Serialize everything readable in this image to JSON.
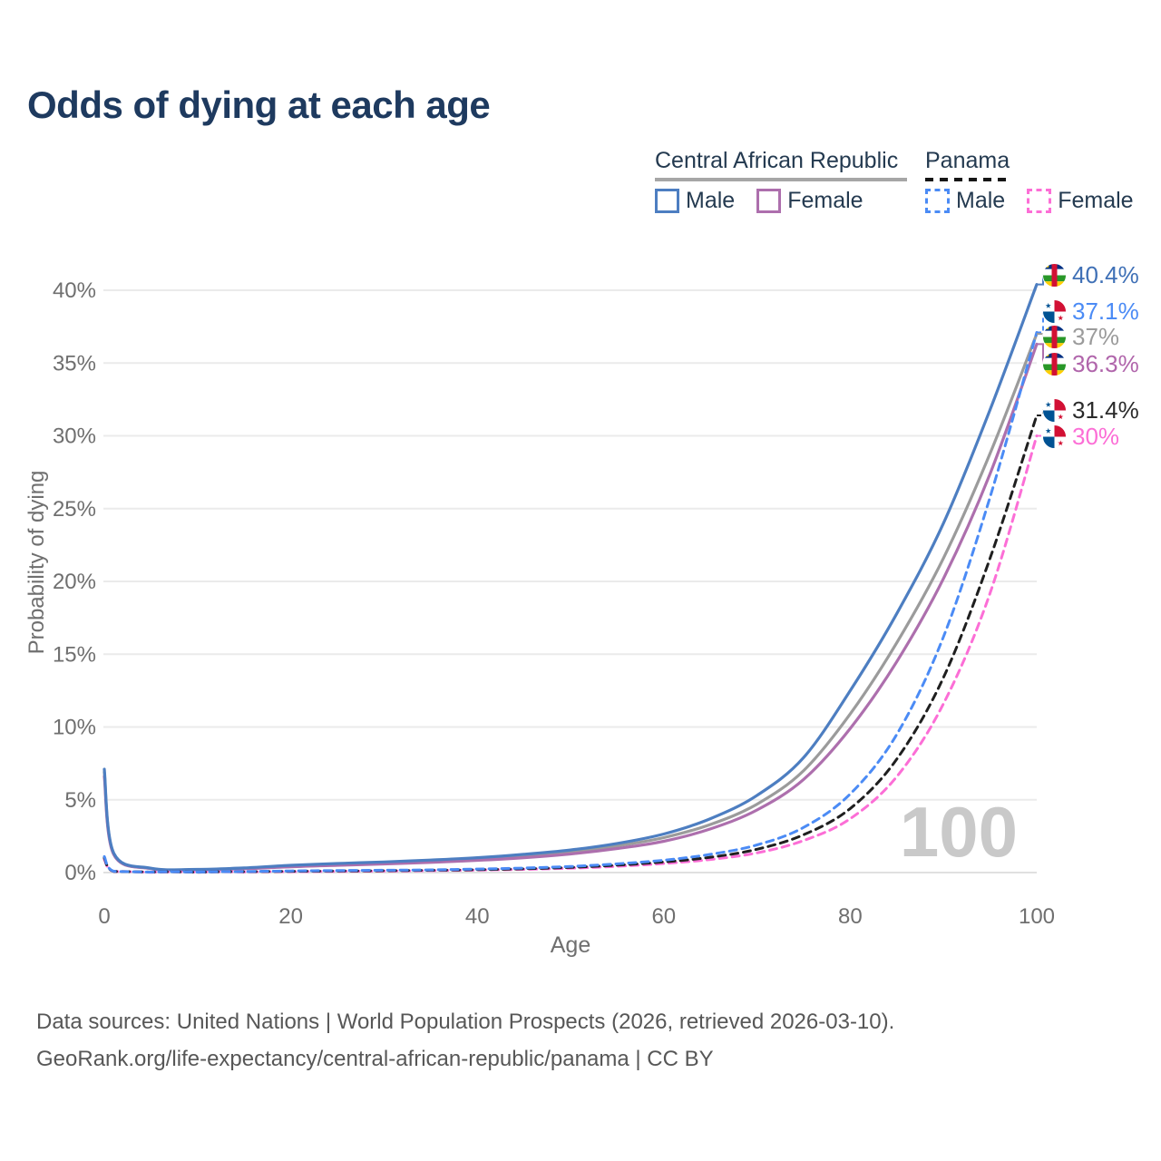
{
  "page": {
    "title": "Odds of dying at each age",
    "background": "#ffffff",
    "title_color": "#1e3a5f"
  },
  "legend": {
    "groups": [
      {
        "label": "Central African Republic",
        "line_style": "solid",
        "underline_color": "#a6a6a6",
        "items": [
          {
            "label": "Male",
            "color": "#4d7ec1"
          },
          {
            "label": "Female",
            "color": "#ad6fad"
          }
        ]
      },
      {
        "label": "Panama",
        "line_style": "dashed",
        "underline_color": "#161616",
        "items": [
          {
            "label": "Male",
            "color": "#4b8bf5"
          },
          {
            "label": "Female",
            "color": "#fc6ed6"
          }
        ]
      }
    ]
  },
  "chart_data": {
    "type": "line",
    "title": "Odds of dying at each age",
    "xlabel": "Age",
    "ylabel": "Probability of dying",
    "x_ticks": [
      0,
      20,
      40,
      60,
      80,
      100
    ],
    "y_ticks_pct": [
      0,
      5,
      10,
      15,
      20,
      25,
      30,
      35,
      40
    ],
    "xlim": [
      0,
      100
    ],
    "ylim_pct": [
      0,
      42
    ],
    "grid": "horizontal",
    "watermark": "100",
    "ages": [
      0,
      1,
      5,
      10,
      15,
      20,
      25,
      30,
      35,
      40,
      45,
      50,
      55,
      60,
      65,
      70,
      75,
      80,
      85,
      90,
      95,
      100
    ],
    "series": [
      {
        "name": "Central African Republic — Male",
        "country": "central-african-republic",
        "sex": "male",
        "line": "solid",
        "color": "#4d7ec1",
        "label_color": "#3f70b6",
        "end_label": "40.4%",
        "values_pct": [
          7.1,
          1.35,
          0.3,
          0.22,
          0.32,
          0.5,
          0.62,
          0.73,
          0.86,
          1.02,
          1.25,
          1.55,
          2.0,
          2.65,
          3.7,
          5.3,
          7.9,
          12.5,
          17.8,
          24.0,
          31.8,
          40.4
        ]
      },
      {
        "name": "Panama — Male",
        "country": "panama",
        "sex": "male",
        "line": "dashed",
        "color": "#4b8bf5",
        "label_color": "#4b8bf5",
        "end_label": "37.1%",
        "values_pct": [
          1.1,
          0.09,
          0.03,
          0.03,
          0.07,
          0.11,
          0.14,
          0.16,
          0.19,
          0.24,
          0.31,
          0.42,
          0.6,
          0.85,
          1.25,
          1.9,
          3.1,
          5.4,
          9.5,
          16.2,
          25.8,
          37.1
        ]
      },
      {
        "name": "Central African Republic — Both sexes",
        "country": "central-african-republic",
        "sex": "both",
        "line": "solid",
        "color": "#9b9b9b",
        "label_color": "#9b9b9b",
        "end_label": "37%",
        "values_pct": [
          6.9,
          1.3,
          0.28,
          0.2,
          0.29,
          0.45,
          0.56,
          0.66,
          0.78,
          0.93,
          1.13,
          1.42,
          1.83,
          2.4,
          3.3,
          4.7,
          7.0,
          10.9,
          15.8,
          21.6,
          28.8,
          37.0
        ]
      },
      {
        "name": "Central African Republic — Female",
        "country": "central-african-republic",
        "sex": "female",
        "line": "solid",
        "color": "#ad6fad",
        "label_color": "#b065ab",
        "end_label": "36.3%",
        "values_pct": [
          6.6,
          1.25,
          0.27,
          0.19,
          0.26,
          0.4,
          0.5,
          0.59,
          0.7,
          0.84,
          1.02,
          1.28,
          1.65,
          2.15,
          3.0,
          4.3,
          6.4,
          9.9,
          14.5,
          20.2,
          27.4,
          36.3
        ]
      },
      {
        "name": "Panama — Both sexes",
        "country": "panama",
        "sex": "both",
        "line": "dashed",
        "color": "#1f1f1f",
        "label_color": "#2a2a2a",
        "end_label": "31.4%",
        "values_pct": [
          1.0,
          0.08,
          0.03,
          0.02,
          0.06,
          0.09,
          0.11,
          0.13,
          0.16,
          0.2,
          0.26,
          0.36,
          0.51,
          0.73,
          1.05,
          1.6,
          2.6,
          4.4,
          7.8,
          13.4,
          21.6,
          31.4
        ]
      },
      {
        "name": "Panama — Female",
        "country": "panama",
        "sex": "female",
        "line": "dashed",
        "color": "#fc6ed6",
        "label_color": "#fc6ed6",
        "end_label": "30%",
        "values_pct": [
          0.9,
          0.08,
          0.02,
          0.02,
          0.04,
          0.06,
          0.08,
          0.1,
          0.13,
          0.17,
          0.22,
          0.3,
          0.43,
          0.62,
          0.9,
          1.35,
          2.2,
          3.7,
          6.6,
          11.6,
          19.2,
          30.0
        ]
      }
    ]
  },
  "flags": {
    "central_african_republic": {
      "blue": "#003082",
      "white": "#ffffff",
      "green": "#289728",
      "yellow": "#ffce00",
      "red": "#d21034"
    },
    "panama": {
      "white": "#ffffff",
      "red": "#d21034",
      "blue": "#005293"
    }
  },
  "footer": {
    "line1": "Data sources: United Nations | World Population Prospects (2026, retrieved 2026-03-10).",
    "line2": "GeoRank.org/life-expectancy/central-african-republic/panama | CC BY"
  }
}
